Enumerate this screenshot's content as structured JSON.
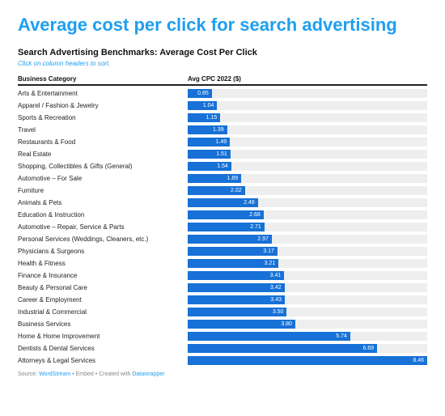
{
  "title": "Average cost per click for search advertising",
  "subtitle": "Search Advertising Benchmarks: Average Cost Per Click",
  "hint": "Click on column headers to sort.",
  "columns": {
    "category": "Business Category",
    "value": "Avg CPC 2022 ($)"
  },
  "chart": {
    "type": "bar-horizontal",
    "bar_color": "#1771d6",
    "track_color": "#eeeeee",
    "value_text_color": "#ffffff",
    "max_value": 8.46,
    "label_fontsize": 8,
    "value_fontsize": 7,
    "rows": [
      {
        "label": "Arts & Entertainment",
        "value": 0.85
      },
      {
        "label": "Apparel / Fashion & Jewelry",
        "value": 1.04
      },
      {
        "label": "Sports & Recreation",
        "value": 1.15
      },
      {
        "label": "Travel",
        "value": 1.39
      },
      {
        "label": "Restaurants & Food",
        "value": 1.49
      },
      {
        "label": "Real Estate",
        "value": 1.51
      },
      {
        "label": "Shopping, Collectibles & Gifts (General)",
        "value": 1.54
      },
      {
        "label": "Automotive – For Sale",
        "value": 1.89
      },
      {
        "label": "Furniture",
        "value": 2.02
      },
      {
        "label": "Animals & Pets",
        "value": 2.48
      },
      {
        "label": "Education & Instruction",
        "value": 2.68
      },
      {
        "label": "Automotive – Repair, Service & Parts",
        "value": 2.71
      },
      {
        "label": "Personal Services (Weddings, Cleaners, etc.)",
        "value": 2.97
      },
      {
        "label": "Physicians & Surgeons",
        "value": 3.17
      },
      {
        "label": "Health & Fitness",
        "value": 3.21
      },
      {
        "label": "Finance & Insurance",
        "value": 3.41
      },
      {
        "label": "Beauty & Personal Care",
        "value": 3.42
      },
      {
        "label": "Career & Employment",
        "value": 3.43
      },
      {
        "label": "Industrial & Commercial",
        "value": 3.5
      },
      {
        "label": "Business Services",
        "value": 3.8
      },
      {
        "label": "Home & Home Improvement",
        "value": 5.74
      },
      {
        "label": "Dentists & Dental Services",
        "value": 6.69
      },
      {
        "label": "Attorneys & Legal Services",
        "value": 8.46
      }
    ]
  },
  "source": {
    "prefix": "Source: ",
    "name": "WordStream",
    "mid": " • Embed • Created with ",
    "tool": "Datawrapper"
  }
}
